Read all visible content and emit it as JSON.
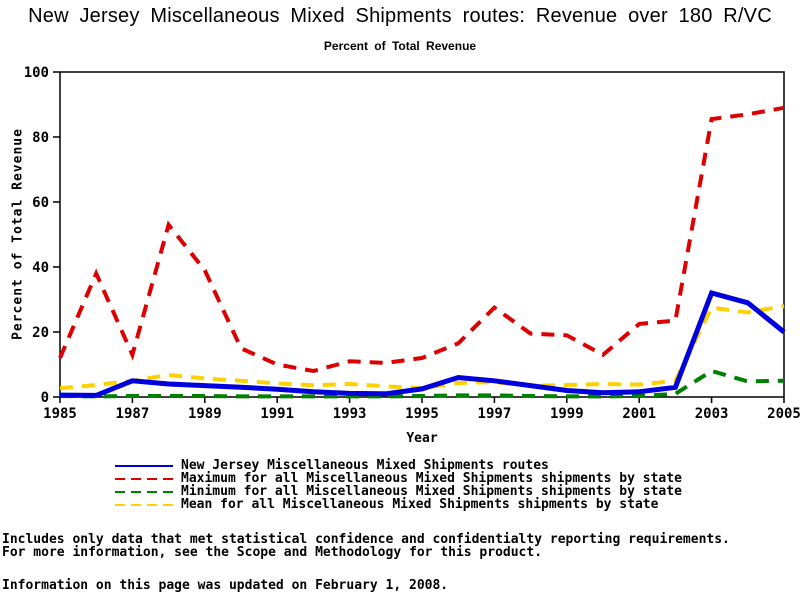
{
  "chart_data": {
    "type": "line",
    "title": "New Jersey Miscellaneous Mixed Shipments routes: Revenue over 180 R/VC",
    "subtitle": "Percent of Total Revenue",
    "xlabel": "Year",
    "ylabel": "Percent of Total Revenue",
    "x": [
      1985,
      1986,
      1987,
      1988,
      1989,
      1990,
      1991,
      1992,
      1993,
      1994,
      1995,
      1996,
      1997,
      1998,
      1999,
      2000,
      2001,
      2002,
      2003,
      2004,
      2005
    ],
    "xticks": [
      1985,
      1987,
      1989,
      1991,
      1993,
      1995,
      1997,
      1999,
      2001,
      2003,
      2005
    ],
    "yticks": [
      0,
      20,
      40,
      60,
      80,
      100
    ],
    "ylim": [
      0,
      100
    ],
    "grid": false,
    "legend_position": "bottom",
    "background": "#ffffff",
    "axis_color": "#000000",
    "series": [
      {
        "name": "New Jersey Miscellaneous Mixed Shipments routes",
        "color": "#0000dd",
        "dash": "solid",
        "width": 5,
        "values": [
          0.6,
          0.5,
          5,
          4,
          3.5,
          3,
          2.4,
          1.6,
          1.1,
          1,
          2.5,
          6,
          5,
          3.5,
          2,
          1.3,
          1.6,
          3,
          32,
          29,
          20
        ]
      },
      {
        "name": "Maximum for all Miscellaneous Mixed Shipments shipments by state",
        "color": "#dd0000",
        "dash": "dashed",
        "width": 4,
        "values": [
          12,
          38,
          13,
          53,
          39,
          15,
          10,
          8,
          11,
          10.5,
          12,
          16.5,
          27.5,
          19.5,
          19,
          13,
          22.5,
          23.5,
          85.5,
          87,
          89
        ]
      },
      {
        "name": "Minimum for all Miscellaneous Mixed Shipments shipments by state",
        "color": "#008000",
        "dash": "dashed",
        "width": 4,
        "values": [
          0.3,
          0.2,
          0.3,
          0.3,
          0.3,
          0.2,
          0.2,
          0.2,
          0.2,
          0.2,
          0.3,
          0.5,
          0.5,
          0.3,
          0.2,
          0.2,
          0.3,
          1,
          8,
          4.8,
          5
        ]
      },
      {
        "name": "Mean for all Miscellaneous Mixed Shipments shipments by state",
        "color": "#ffd000",
        "dash": "dashed",
        "width": 4,
        "values": [
          2.7,
          3.7,
          5,
          6.8,
          5.7,
          5,
          4.2,
          3.6,
          4,
          3.3,
          2.7,
          4.3,
          4.6,
          3.4,
          3.7,
          4,
          3.8,
          5,
          27.5,
          26,
          28
        ]
      }
    ]
  },
  "footer": {
    "line1": "Includes only data that met statistical confidence and confidentialty reporting requirements.",
    "line2": "For more information, see the Scope and Methodology for this product.",
    "line3": "Information on this page was updated on February 1, 2008."
  }
}
